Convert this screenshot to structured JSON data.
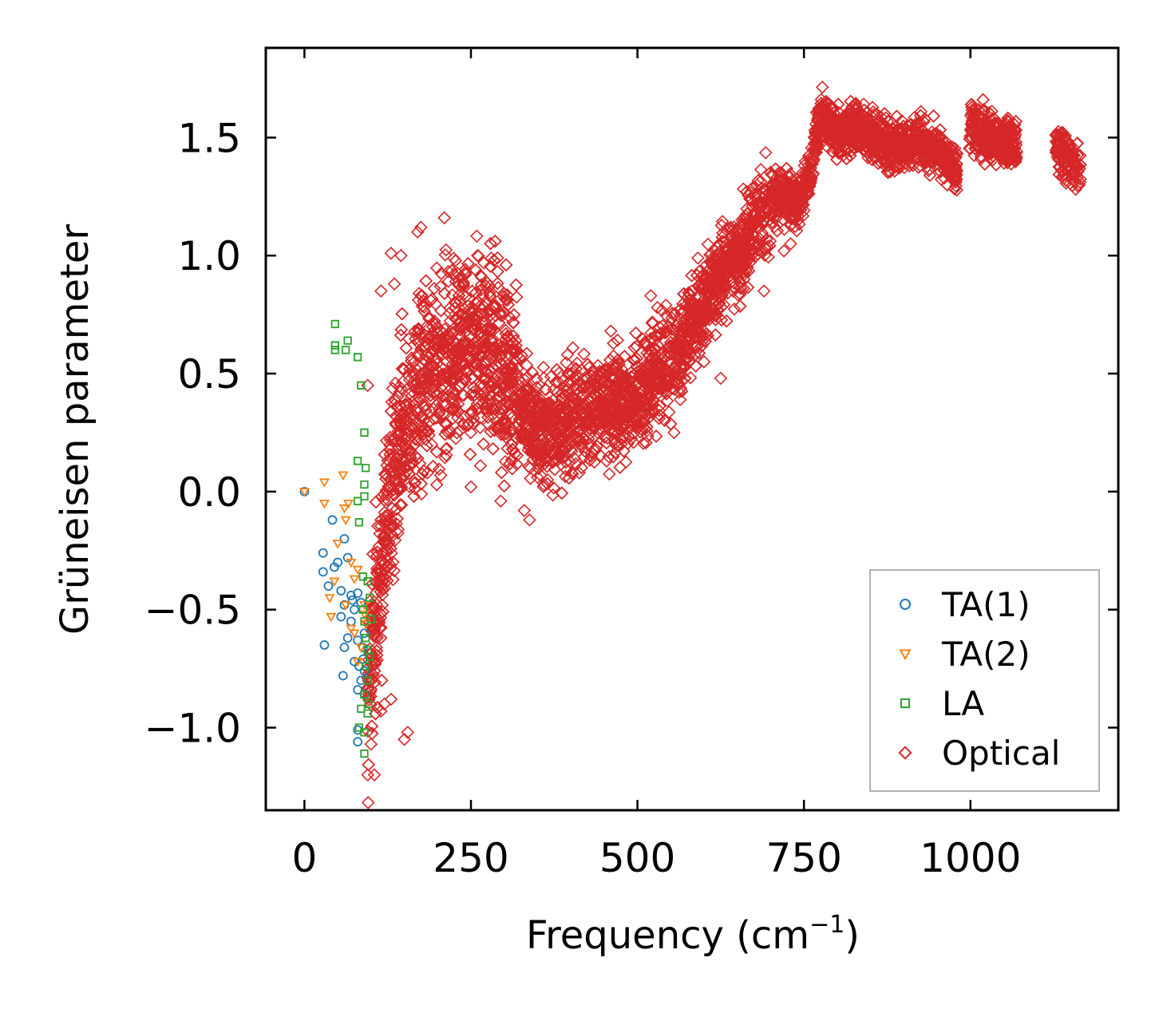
{
  "chart_data": {
    "type": "scatter",
    "title": "",
    "xlabel": "Frequency (cm",
    "xlabel_sup": "−1",
    "xlabel_tail": ")",
    "ylabel": "Grüneisen parameter",
    "xlim": [
      -58,
      1222
    ],
    "ylim": [
      -1.35,
      1.88
    ],
    "xticks": [
      0,
      250,
      500,
      750,
      1000
    ],
    "xtick_labels": [
      "0",
      "250",
      "500",
      "750",
      "1000"
    ],
    "yticks": [
      -1.0,
      -0.5,
      0.0,
      0.5,
      1.0,
      1.5
    ],
    "ytick_labels": [
      "−1.0",
      "−0.5",
      "0.0",
      "0.5",
      "1.0",
      "1.5"
    ],
    "grid": false,
    "legend_position": "bottom-right",
    "series": [
      {
        "name": "TA(1)",
        "marker": "circle",
        "color": "#1f77b4",
        "points": [
          [
            0,
            0.0
          ],
          [
            42,
            -0.12
          ],
          [
            60,
            -0.2
          ],
          [
            28,
            -0.26
          ],
          [
            50,
            -0.3
          ],
          [
            65,
            -0.28
          ],
          [
            28,
            -0.34
          ],
          [
            45,
            -0.32
          ],
          [
            36,
            -0.4
          ],
          [
            55,
            -0.42
          ],
          [
            70,
            -0.44
          ],
          [
            80,
            -0.43
          ],
          [
            60,
            -0.48
          ],
          [
            75,
            -0.5
          ],
          [
            85,
            -0.47
          ],
          [
            55,
            -0.53
          ],
          [
            70,
            -0.55
          ],
          [
            65,
            -0.62
          ],
          [
            80,
            -0.63
          ],
          [
            30,
            -0.65
          ],
          [
            60,
            -0.66
          ],
          [
            75,
            -0.72
          ],
          [
            82,
            -0.74
          ],
          [
            88,
            -0.71
          ],
          [
            90,
            -0.76
          ],
          [
            85,
            -0.8
          ],
          [
            58,
            -0.78
          ],
          [
            80,
            -0.84
          ],
          [
            90,
            -0.86
          ],
          [
            80,
            -1.01
          ],
          [
            80,
            -1.06
          ],
          [
            90,
            -0.6
          ],
          [
            88,
            -0.66
          ],
          [
            72,
            -0.46
          ]
        ]
      },
      {
        "name": "TA(2)",
        "marker": "triangle-down",
        "color": "#ff7f0e",
        "points": [
          [
            0,
            0.0
          ],
          [
            30,
            0.04
          ],
          [
            58,
            0.07
          ],
          [
            30,
            -0.05
          ],
          [
            60,
            -0.07
          ],
          [
            66,
            -0.05
          ],
          [
            62,
            -0.12
          ],
          [
            50,
            -0.22
          ],
          [
            70,
            -0.3
          ],
          [
            80,
            -0.33
          ],
          [
            45,
            -0.38
          ],
          [
            75,
            -0.37
          ],
          [
            38,
            -0.45
          ],
          [
            62,
            -0.48
          ],
          [
            40,
            -0.53
          ],
          [
            90,
            -0.52
          ],
          [
            70,
            -0.58
          ],
          [
            75,
            -0.6
          ],
          [
            85,
            -0.66
          ],
          [
            90,
            -0.48
          ],
          [
            92,
            -0.56
          ],
          [
            80,
            -0.72
          ]
        ]
      },
      {
        "name": "LA",
        "marker": "square",
        "color": "#2ca02c",
        "points": [
          [
            46,
            0.71
          ],
          [
            46,
            0.62
          ],
          [
            65,
            0.64
          ],
          [
            46,
            0.6
          ],
          [
            62,
            0.6
          ],
          [
            80,
            0.57
          ],
          [
            85,
            0.45
          ],
          [
            90,
            0.25
          ],
          [
            80,
            0.13
          ],
          [
            92,
            0.1
          ],
          [
            90,
            0.03
          ],
          [
            90,
            -0.02
          ],
          [
            80,
            -0.04
          ],
          [
            82,
            -0.13
          ],
          [
            88,
            -0.36
          ],
          [
            95,
            -0.38
          ],
          [
            98,
            -0.45
          ],
          [
            90,
            -0.55
          ],
          [
            100,
            -0.54
          ],
          [
            92,
            -0.62
          ],
          [
            95,
            -0.67
          ],
          [
            92,
            -0.74
          ],
          [
            95,
            -0.8
          ],
          [
            90,
            -0.86
          ],
          [
            85,
            -0.92
          ],
          [
            95,
            -0.94
          ],
          [
            82,
            -1.0
          ],
          [
            90,
            -1.02
          ],
          [
            90,
            -1.11
          ],
          [
            96,
            -0.9
          ],
          [
            98,
            -0.7
          ],
          [
            88,
            -0.5
          ]
        ]
      },
      {
        "name": "Optical",
        "marker": "diamond",
        "color": "#d62728",
        "trend": [
          [
            95,
            -0.85
          ],
          [
            110,
            -0.45
          ],
          [
            125,
            -0.1
          ],
          [
            140,
            0.15
          ],
          [
            160,
            0.35
          ],
          [
            180,
            0.45
          ],
          [
            200,
            0.5
          ],
          [
            230,
            0.55
          ],
          [
            260,
            0.58
          ],
          [
            290,
            0.55
          ],
          [
            320,
            0.4
          ],
          [
            350,
            0.27
          ],
          [
            380,
            0.25
          ],
          [
            410,
            0.32
          ],
          [
            440,
            0.35
          ],
          [
            470,
            0.37
          ],
          [
            500,
            0.42
          ],
          [
            530,
            0.5
          ],
          [
            560,
            0.58
          ],
          [
            590,
            0.75
          ],
          [
            620,
            0.9
          ],
          [
            650,
            1.0
          ],
          [
            680,
            1.15
          ],
          [
            710,
            1.25
          ],
          [
            740,
            1.23
          ],
          [
            760,
            1.35
          ],
          [
            775,
            1.6
          ],
          [
            800,
            1.52
          ],
          [
            830,
            1.55
          ],
          [
            860,
            1.5
          ],
          [
            890,
            1.45
          ],
          [
            920,
            1.5
          ],
          [
            950,
            1.45
          ],
          [
            980,
            1.35
          ],
          [
            1000,
            1.55
          ],
          [
            1030,
            1.5
          ],
          [
            1060,
            1.48
          ],
          [
            1070,
            1.42
          ],
          [
            1130,
            1.45
          ],
          [
            1150,
            1.4
          ],
          [
            1165,
            1.33
          ]
        ],
        "gaps": [
          [
            980,
            998
          ],
          [
            1070,
            1128
          ]
        ],
        "outliers": [
          [
            130,
            1.01
          ],
          [
            145,
            1.0
          ],
          [
            170,
            1.1
          ],
          [
            175,
            1.12
          ],
          [
            210,
            1.16
          ],
          [
            260,
            1.0
          ],
          [
            290,
            0.99
          ],
          [
            135,
            0.88
          ],
          [
            115,
            0.85
          ],
          [
            95,
            0.45
          ],
          [
            95,
            -1.2
          ],
          [
            105,
            -1.2
          ],
          [
            100,
            -1.07
          ],
          [
            150,
            -1.05
          ],
          [
            155,
            -1.02
          ],
          [
            120,
            -0.9
          ],
          [
            130,
            -0.88
          ],
          [
            115,
            -0.93
          ],
          [
            250,
            0.02
          ],
          [
            338,
            -0.12
          ],
          [
            330,
            -0.08
          ],
          [
            365,
            0.05
          ],
          [
            395,
            0.58
          ],
          [
            460,
            0.68
          ],
          [
            520,
            0.83
          ],
          [
            530,
            0.78
          ],
          [
            555,
            0.25
          ],
          [
            600,
            0.55
          ],
          [
            625,
            0.48
          ],
          [
            660,
            0.9
          ],
          [
            665,
            0.95
          ],
          [
            690,
            0.85
          ],
          [
            720,
            1.02
          ],
          [
            730,
            1.05
          ],
          [
            640,
            1.12
          ]
        ]
      }
    ]
  }
}
